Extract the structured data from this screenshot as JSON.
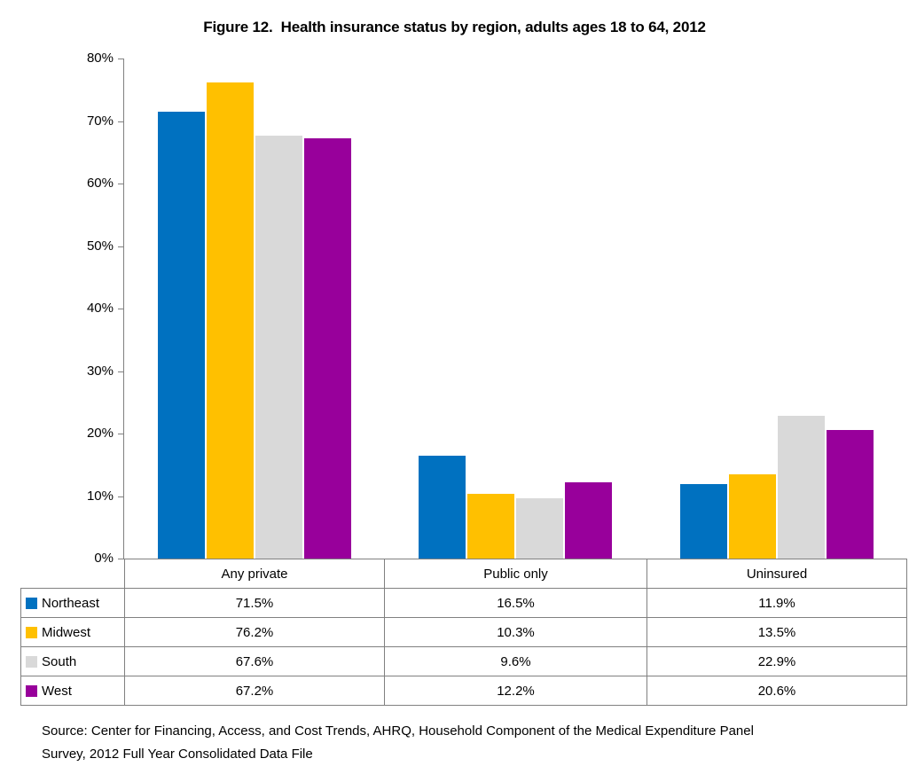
{
  "title": "Figure 12.  Health insurance status by region, adults ages 18 to 64, 2012",
  "source": {
    "lines": [
      "Source: Center for Financing, Access, and Cost Trends, AHRQ, Household Component of the Medical Expenditure Panel",
      "Survey, 2012 Full Year Consolidated Data File"
    ]
  },
  "colors": {
    "axis": "#808080",
    "background": "#FFFFFF",
    "text": "#000000"
  },
  "chart_data": {
    "type": "bar",
    "title": "Figure 12.  Health insurance status by region, adults ages 18 to 64, 2012",
    "categories": [
      "Any private",
      "Public only",
      "Uninsured"
    ],
    "series": [
      {
        "name": "Northeast",
        "color": "#0071C0",
        "values": [
          71.5,
          16.5,
          11.9
        ],
        "display": [
          "71.5%",
          "16.5%",
          "11.9%"
        ]
      },
      {
        "name": "Midwest",
        "color": "#FFC000",
        "values": [
          76.2,
          10.3,
          13.5
        ],
        "display": [
          "76.2%",
          "10.3%",
          "13.5%"
        ]
      },
      {
        "name": "South",
        "color": "#D9D9D9",
        "values": [
          67.6,
          9.6,
          22.9
        ],
        "display": [
          "67.6%",
          "9.6%",
          "22.9%"
        ]
      },
      {
        "name": "West",
        "color": "#98009B",
        "values": [
          67.2,
          12.2,
          20.6
        ],
        "display": [
          "67.2%",
          "12.2%",
          "20.6%"
        ]
      }
    ],
    "ylim": [
      0,
      80
    ],
    "ytick_step": 10,
    "ytick_labels": [
      "0%",
      "10%",
      "20%",
      "30%",
      "40%",
      "50%",
      "60%",
      "70%",
      "80%"
    ],
    "grid": false,
    "legend_position": "data-table-left",
    "xlabel": "",
    "ylabel": ""
  }
}
